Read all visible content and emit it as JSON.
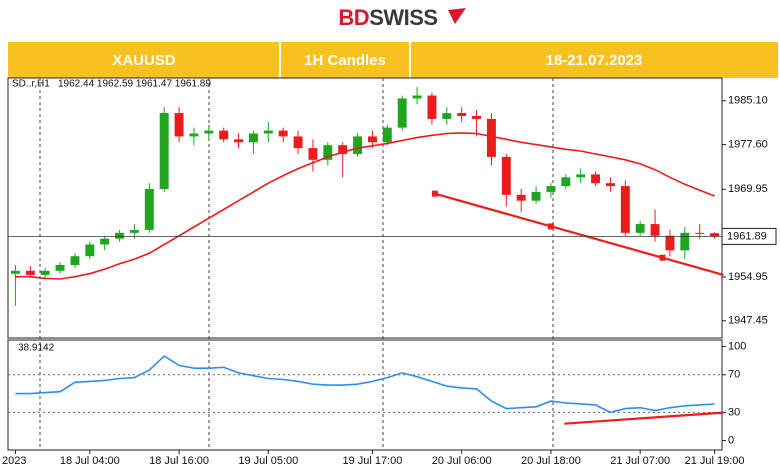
{
  "header": {
    "logo_1": "BD",
    "logo_2": "SWISS",
    "symbol": "XAUUSD",
    "timeframe": "1H Candles",
    "dates": "18-21.07.2023"
  },
  "chart_data": [
    {
      "type": "candlestick",
      "label": "SD..r,H1",
      "ohlc_label": "1962.44 1962.59 1961.47 1961.89",
      "categories": [
        "2023",
        null,
        null,
        null,
        null,
        "18 Jul 04:00",
        null,
        null,
        null,
        null,
        null,
        "18 Jul 16:00",
        null,
        null,
        null,
        null,
        null,
        "19 Jul 05:00",
        null,
        null,
        null,
        null,
        null,
        null,
        "19 Jul 17:00",
        null,
        null,
        null,
        null,
        null,
        "20 Jul 06:00",
        null,
        null,
        null,
        null,
        null,
        "20 Jul 18:00",
        null,
        null,
        null,
        null,
        null,
        "21 Jul 07:00",
        null,
        null,
        null,
        null,
        "21 Jul 19:00"
      ],
      "open": [
        1955.5,
        1956,
        1955.3,
        1956,
        1957,
        1958.5,
        1960.5,
        1961.5,
        1962.5,
        1963,
        1970,
        1983,
        1979,
        1979.5,
        1980,
        1978.5,
        1978,
        1979.5,
        1980,
        1979,
        1977,
        1975,
        1977.5,
        1976,
        1979,
        1978,
        1980.5,
        1985.5,
        1986,
        1982,
        1983,
        1982.5,
        1982,
        1975.5,
        1969,
        1968,
        1969.5,
        1970.5,
        1972,
        1972.5,
        1971,
        1970.5,
        1962.5,
        1964,
        1962,
        1959.5,
        1962.5,
        1962.44
      ],
      "high": [
        1957,
        1956.8,
        1956.5,
        1957.5,
        1959,
        1961,
        1962,
        1963,
        1964,
        1971,
        1984,
        1984,
        1980.5,
        1981,
        1980.5,
        1979.5,
        1980,
        1981.5,
        1980.5,
        1980,
        1978.5,
        1978,
        1978,
        1979.5,
        1980,
        1981,
        1986,
        1987.5,
        1986.5,
        1984,
        1984,
        1983.5,
        1983,
        1976,
        1970,
        1970.5,
        1971,
        1972.5,
        1973.5,
        1973,
        1972,
        1971.5,
        1964.5,
        1966.5,
        1963,
        1963.5,
        1964,
        1962.59
      ],
      "low": [
        1950,
        1955,
        1954.8,
        1955.5,
        1956.5,
        1958,
        1959.5,
        1961,
        1961.5,
        1962.5,
        1969.5,
        1978,
        1977.5,
        1978.5,
        1978,
        1977,
        1976,
        1978,
        1978,
        1976,
        1973,
        1974,
        1972,
        1975.5,
        1977,
        1977.5,
        1980,
        1984.5,
        1981,
        1981,
        1981.5,
        1979,
        1974,
        1967,
        1966,
        1967.5,
        1968.5,
        1970,
        1971,
        1970.5,
        1969.5,
        1962,
        1962,
        1961,
        1958.5,
        1958,
        1961.5,
        1961.47
      ],
      "close": [
        1956,
        1955.3,
        1956,
        1957,
        1958.5,
        1960.5,
        1961.5,
        1962.5,
        1963,
        1970,
        1983,
        1979,
        1979.5,
        1980,
        1978.5,
        1978,
        1979.5,
        1980,
        1979,
        1977,
        1975,
        1977.5,
        1976,
        1979,
        1978,
        1980.5,
        1985.5,
        1986,
        1982,
        1983,
        1982.5,
        1982,
        1975.5,
        1969,
        1968,
        1969.5,
        1970.5,
        1972,
        1972.5,
        1971,
        1970.5,
        1962.5,
        1964,
        1962,
        1959.5,
        1962.5,
        1962.44,
        1961.89
      ],
      "up_color": "#1fa51f",
      "down_color": "#ec1c1c",
      "lines": [
        {
          "color": "#ec1c1c",
          "values": [
            1955,
            1955,
            1954.7,
            1954.6,
            1955,
            1955.5,
            1956.3,
            1957.2,
            1958,
            1959,
            1960.5,
            1962,
            1963.5,
            1965,
            1966.5,
            1968,
            1969.5,
            1971,
            1972.3,
            1973.5,
            1974.5,
            1975.5,
            1976.3,
            1977,
            1977.4,
            1977.8,
            1978.3,
            1978.8,
            1979.2,
            1979.5,
            1979.6,
            1979.5,
            1979,
            1978.5,
            1978,
            1977.6,
            1977.2,
            1976.8,
            1976.5,
            1976,
            1975.5,
            1975,
            1974.3,
            1973.3,
            1972,
            1970.8,
            1969.8,
            1968.8
          ]
        }
      ],
      "trendline": {
        "color": "#ec1c1c",
        "x": [
          28.2,
          47.6
        ],
        "y": [
          1969.2,
          1955.3
        ]
      },
      "anchors": {
        "x": [
          28.2,
          36,
          43.5
        ],
        "y": [
          1969.2,
          1963.6,
          1958.24
        ]
      },
      "ylim": [
        1944.5,
        1989
      ],
      "yticks": [
        {
          "value": 1985.1,
          "label": "1985.10"
        },
        {
          "value": 1977.6,
          "label": "1977.60"
        },
        1969.95,
        1954.95,
        1947.45
      ]
    },
    {
      "type": "line",
      "series": [
        {
          "color": "#2f8fe8",
          "values": [
            50,
            50,
            51,
            52,
            62,
            63,
            64,
            66,
            67,
            75,
            90,
            80,
            77,
            77,
            78,
            72,
            69,
            66,
            65,
            63,
            60,
            59,
            59,
            60,
            63,
            67,
            72,
            68,
            63,
            58,
            56,
            55,
            42,
            34,
            35,
            36,
            42,
            40,
            39,
            38,
            30,
            34,
            35,
            32,
            35,
            37,
            38,
            38.9142
          ]
        }
      ],
      "trendline": {
        "color": "#ec1c1c",
        "x": [
          36.9,
          47.6
        ],
        "y": [
          18,
          29.8
        ]
      },
      "ylim": [
        -10,
        107
      ],
      "yticks": [
        100,
        70,
        30,
        0
      ]
    }
  ]
}
